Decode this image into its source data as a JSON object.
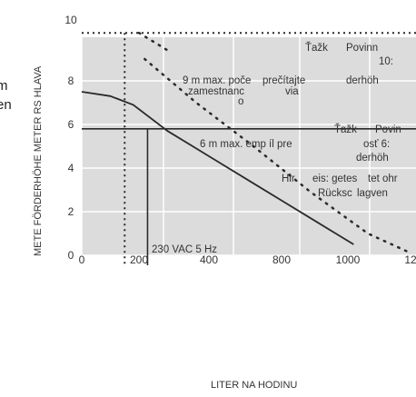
{
  "page": {
    "title": "m\nen"
  },
  "chart_data": {
    "type": "line",
    "title": "",
    "xlabel": "LITER NA HODINU",
    "ylabel": "METE FÖRDERHÖHE METER RS HLAVA",
    "xlim": [
      0,
      1200
    ],
    "ylim": [
      0,
      10
    ],
    "x_ticks": [
      "0",
      "200",
      "400",
      "800",
      "1000",
      "12"
    ],
    "y_ticks": [
      "0",
      "2",
      "4",
      "6",
      "8",
      "10"
    ],
    "series": [
      {
        "style": "solid",
        "x": [
          0,
          100,
          180,
          300,
          400,
          500,
          600,
          700,
          800,
          900,
          950
        ],
        "y": [
          7.5,
          7.3,
          6.9,
          5.7,
          4.9,
          4.1,
          3.3,
          2.5,
          1.7,
          0.9,
          0.5
        ]
      },
      {
        "style": "dotted",
        "x": [
          220,
          400,
          600,
          800,
          1000,
          1150
        ],
        "y": [
          9.0,
          7.0,
          5.0,
          2.9,
          1.0,
          0.1
        ]
      },
      {
        "style": "dotted",
        "x": [
          200,
          300
        ],
        "y": [
          10.2,
          9.4
        ]
      }
    ],
    "reference_lines": [
      {
        "orientation": "horizontal",
        "value": 10.2,
        "style": "dotted"
      },
      {
        "orientation": "horizontal",
        "value": 5.8,
        "style": "solid"
      },
      {
        "orientation": "vertical",
        "value": 150,
        "style": "dotted"
      },
      {
        "orientation": "vertical",
        "value": 230,
        "style": "solid"
      }
    ],
    "annotations": [
      "Ťažk",
      "Povinn",
      "10:",
      "9 m  max. poče",
      "zamestnanc",
      "o",
      "prečítajte",
      "via",
      "derhöh",
      "Ťažk",
      "Povin",
      "6 m  max. emp  íl pre",
      "osť 6:",
      "derhöh",
      "Hir",
      "eis: getes",
      "tet ohr",
      "Rücksc",
      "lagven",
      "230 VAC 5  Hz"
    ],
    "colors": {
      "plot_background": "#dcdcdc",
      "grid": "#ffffff",
      "ink": "#2a2a2a"
    }
  }
}
